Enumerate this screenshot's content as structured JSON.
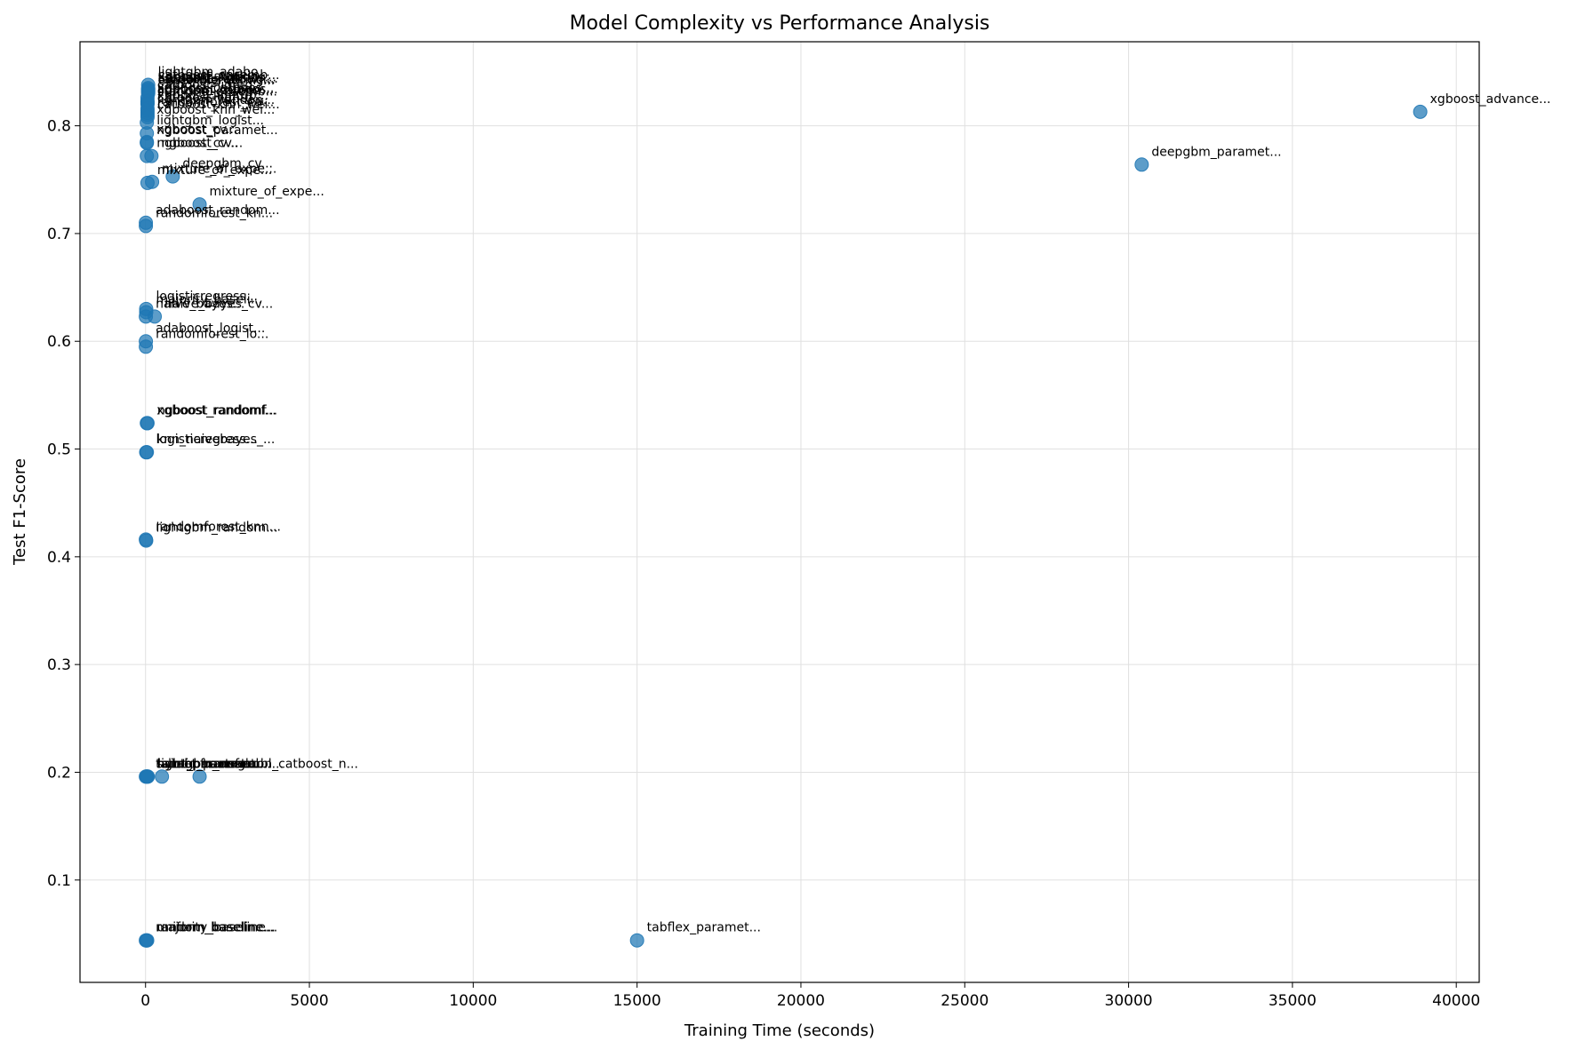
{
  "chart_data": {
    "type": "scatter",
    "title": "Model Complexity vs Performance Analysis",
    "xlabel": "Training Time (seconds)",
    "ylabel": "Test F1-Score",
    "xlim": [
      -2000,
      40700
    ],
    "ylim": [
      0.005,
      0.878
    ],
    "xticks": [
      0,
      5000,
      10000,
      15000,
      20000,
      25000,
      30000,
      35000,
      40000
    ],
    "yticks": [
      0.1,
      0.2,
      0.3,
      0.4,
      0.5,
      0.6,
      0.7,
      0.8
    ],
    "grid": true,
    "color": "#1f77b4",
    "points": [
      {
        "x": 38900,
        "y": 0.813,
        "label": "xgboost_advance..."
      },
      {
        "x": 30400,
        "y": 0.764,
        "label": "deepgbm_paramet..."
      },
      {
        "x": 15000,
        "y": 0.044,
        "label": "tabflex_paramet..."
      },
      {
        "x": 1650,
        "y": 0.727,
        "label": "mixture_of_expe..."
      },
      {
        "x": 830,
        "y": 0.753,
        "label": "deepgbm_cv..."
      },
      {
        "x": 200,
        "y": 0.748,
        "label": "mixture_of_expe..."
      },
      {
        "x": 60,
        "y": 0.747,
        "label": "mixture_of_expe..."
      },
      {
        "x": 80,
        "y": 0.838,
        "label": "lightgbm_adabo..."
      },
      {
        "x": 80,
        "y": 0.835,
        "label": "catboost_ensemb..."
      },
      {
        "x": 80,
        "y": 0.834,
        "label": "xgboost_stackin..."
      },
      {
        "x": 80,
        "y": 0.833,
        "label": "lightgbm_xgboos..."
      },
      {
        "x": 80,
        "y": 0.832,
        "label": "catboost_random..."
      },
      {
        "x": 80,
        "y": 0.831,
        "label": "randomforest_xg..."
      },
      {
        "x": 80,
        "y": 0.83,
        "label": "ensemble_votinc..."
      },
      {
        "x": 60,
        "y": 0.826,
        "label": "catboost_lightg..."
      },
      {
        "x": 60,
        "y": 0.823,
        "label": "xgboost_catboos..."
      },
      {
        "x": 60,
        "y": 0.822,
        "label": "adaboost_xgboos..."
      },
      {
        "x": 60,
        "y": 0.821,
        "label": "lightgbm_catboo..."
      },
      {
        "x": 60,
        "y": 0.82,
        "label": "stacking_ensemb..."
      },
      {
        "x": 60,
        "y": 0.816,
        "label": "xgboost_lightgb..."
      },
      {
        "x": 60,
        "y": 0.814,
        "label": "catboost_lightg..."
      },
      {
        "x": 60,
        "y": 0.812,
        "label": "lightgbm_randon..."
      },
      {
        "x": 60,
        "y": 0.81,
        "label": "randomforest_ca..."
      },
      {
        "x": 60,
        "y": 0.808,
        "label": "catboost_knn_wei..."
      },
      {
        "x": 40,
        "y": 0.803,
        "label": "xgboost_knn_wei..."
      },
      {
        "x": 40,
        "y": 0.793,
        "label": "lightgbm_logist..."
      },
      {
        "x": 40,
        "y": 0.785,
        "label": "xgboost_cv..."
      },
      {
        "x": 40,
        "y": 0.784,
        "label": "ngboost_paramet..."
      },
      {
        "x": 40,
        "y": 0.772,
        "label": "ngboost_cv..."
      },
      {
        "x": 180,
        "y": 0.772,
        "label": "ngboost_cv..."
      },
      {
        "x": 10,
        "y": 0.71,
        "label": "adaboost_random..."
      },
      {
        "x": 10,
        "y": 0.707,
        "label": "randomforest_kn..."
      },
      {
        "x": 20,
        "y": 0.63,
        "label": "logisticregress..."
      },
      {
        "x": 20,
        "y": 0.627,
        "label": "majority_baseli..."
      },
      {
        "x": 10,
        "y": 0.623,
        "label": "naive_bayes..."
      },
      {
        "x": 280,
        "y": 0.623,
        "label": "naive_bayes_cv..."
      },
      {
        "x": 10,
        "y": 0.6,
        "label": "adaboost_logist..."
      },
      {
        "x": 10,
        "y": 0.595,
        "label": "randomforest_lo..."
      },
      {
        "x": 40,
        "y": 0.524,
        "label": "xgboost_randomf..."
      },
      {
        "x": 60,
        "y": 0.524,
        "label": "ngboost_randomf..."
      },
      {
        "x": 20,
        "y": 0.497,
        "label": "logisticregress..."
      },
      {
        "x": 40,
        "y": 0.497,
        "label": "knn_naivebayes_..."
      },
      {
        "x": 10,
        "y": 0.416,
        "label": "randomforest_knn..."
      },
      {
        "x": 20,
        "y": 0.415,
        "label": "lightgbm_random..."
      },
      {
        "x": 10,
        "y": 0.196,
        "label": "tabnet_paramet..."
      },
      {
        "x": 30,
        "y": 0.196,
        "label": "saint_paramet..."
      },
      {
        "x": 50,
        "y": 0.196,
        "label": "hybrid_transfor..."
      },
      {
        "x": 70,
        "y": 0.196,
        "label": "lightgbm_neural..."
      },
      {
        "x": 500,
        "y": 0.196,
        "label": "tabpfn_ensembl..."
      },
      {
        "x": 1650,
        "y": 0.196,
        "label": "autogluon_catboost_n..."
      },
      {
        "x": 10,
        "y": 0.044,
        "label": "majority_baseline..."
      },
      {
        "x": 30,
        "y": 0.044,
        "label": "random_baseline..."
      },
      {
        "x": 50,
        "y": 0.044,
        "label": "uniform_baseline..."
      }
    ]
  }
}
